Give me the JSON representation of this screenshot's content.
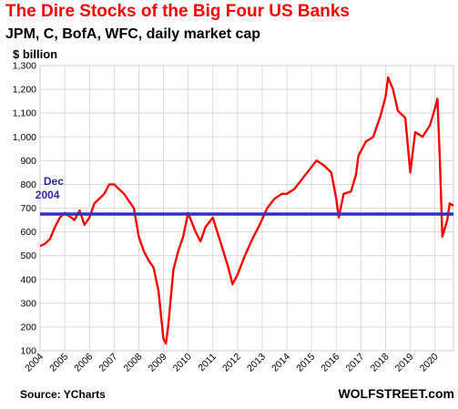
{
  "chart_data": {
    "type": "line",
    "title": "The Dire Stocks of the Big Four US Banks",
    "subtitle": "JPM, C, BofA, WFC, daily market cap",
    "unit_label": "$ billion",
    "source": "Source: YCharts",
    "brand": "WOLFSTREET.com",
    "ylim": [
      100,
      1300
    ],
    "yticks": [
      100,
      200,
      300,
      400,
      500,
      600,
      700,
      800,
      900,
      1000,
      1100,
      1200,
      1300
    ],
    "ytick_labels": [
      "100",
      "200",
      "300",
      "400",
      "500",
      "600",
      "700",
      "800",
      "900",
      "1,000",
      "1,100",
      "1,200",
      "1,300"
    ],
    "xlim": [
      2004,
      2020.75
    ],
    "xticks": [
      "2004",
      "2005",
      "2006",
      "2007",
      "2008",
      "2009",
      "2010",
      "2011",
      "2012",
      "2013",
      "2014",
      "2015",
      "2016",
      "2017",
      "2018",
      "2019",
      "2020"
    ],
    "grid": true,
    "series_color": "#ff0000",
    "reference_color": "#3333bb",
    "reference_line": {
      "value": 675,
      "label_line1": "Dec",
      "label_line2": "2004"
    },
    "series": [
      {
        "x": [
          2004.0,
          2004.2,
          2004.4,
          2004.6,
          2004.8,
          2005.0,
          2005.2,
          2005.4,
          2005.6,
          2005.8,
          2006.0,
          2006.2,
          2006.4,
          2006.6,
          2006.8,
          2007.0,
          2007.2,
          2007.4,
          2007.6,
          2007.8,
          2008.0,
          2008.2,
          2008.4,
          2008.6,
          2008.8,
          2009.0,
          2009.1,
          2009.2,
          2009.4,
          2009.6,
          2009.8,
          2010.0,
          2010.3,
          2010.5,
          2010.7,
          2011.0,
          2011.3,
          2011.6,
          2011.8,
          2012.0,
          2012.3,
          2012.6,
          2012.9,
          2013.2,
          2013.5,
          2013.8,
          2014.0,
          2014.3,
          2014.6,
          2014.9,
          2015.2,
          2015.5,
          2015.8,
          2016.0,
          2016.1,
          2016.3,
          2016.6,
          2016.8,
          2016.9,
          2017.2,
          2017.5,
          2017.8,
          2018.0,
          2018.1,
          2018.3,
          2018.5,
          2018.8,
          2019.0,
          2019.2,
          2019.5,
          2019.8,
          2020.0,
          2020.1,
          2020.2,
          2020.3,
          2020.5,
          2020.6,
          2020.75
        ],
        "y": [
          540,
          550,
          570,
          620,
          660,
          680,
          665,
          650,
          690,
          630,
          660,
          720,
          740,
          760,
          800,
          800,
          780,
          760,
          730,
          700,
          580,
          520,
          480,
          450,
          350,
          150,
          130,
          210,
          440,
          520,
          580,
          680,
          600,
          560,
          620,
          660,
          560,
          460,
          380,
          420,
          500,
          570,
          630,
          700,
          740,
          760,
          760,
          780,
          820,
          860,
          900,
          880,
          850,
          740,
          660,
          760,
          770,
          840,
          920,
          980,
          1000,
          1090,
          1170,
          1250,
          1200,
          1110,
          1080,
          850,
          1020,
          1000,
          1050,
          1120,
          1160,
          900,
          580,
          650,
          720,
          710
        ]
      }
    ]
  }
}
